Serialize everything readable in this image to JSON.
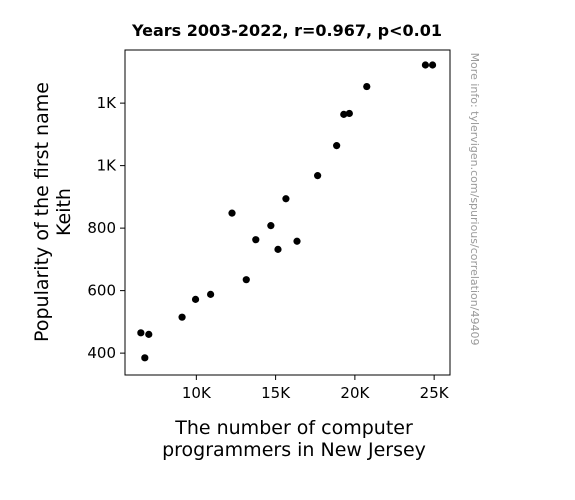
{
  "chart_data": {
    "type": "scatter",
    "title": "Years 2003-2022, r=0.967, p<0.01",
    "xlabel_lines": [
      "The number of computer",
      "programmers in New Jersey"
    ],
    "ylabel_lines": [
      "Popularity of the first name",
      "Keith"
    ],
    "xlim": [
      5500,
      26000
    ],
    "ylim": [
      330,
      1370
    ],
    "x_ticks": [
      {
        "value": 10000,
        "label": "10K"
      },
      {
        "value": 15000,
        "label": "15K"
      },
      {
        "value": 20000,
        "label": "20K"
      },
      {
        "value": 25000,
        "label": "25K"
      }
    ],
    "y_ticks": [
      {
        "value": 400,
        "label": "400"
      },
      {
        "value": 600,
        "label": "600"
      },
      {
        "value": 800,
        "label": "800"
      },
      {
        "value": 1000,
        "label": "1K"
      },
      {
        "value": 1200,
        "label": "1K"
      }
    ],
    "grid": false,
    "marker_color": "#000000",
    "points": [
      {
        "x": 6500,
        "y": 465
      },
      {
        "x": 6750,
        "y": 385
      },
      {
        "x": 7000,
        "y": 460
      },
      {
        "x": 9100,
        "y": 515
      },
      {
        "x": 9950,
        "y": 572
      },
      {
        "x": 10900,
        "y": 588
      },
      {
        "x": 12250,
        "y": 848
      },
      {
        "x": 13150,
        "y": 635
      },
      {
        "x": 13750,
        "y": 763
      },
      {
        "x": 14700,
        "y": 808
      },
      {
        "x": 15150,
        "y": 732
      },
      {
        "x": 15650,
        "y": 894
      },
      {
        "x": 16350,
        "y": 758
      },
      {
        "x": 17650,
        "y": 968
      },
      {
        "x": 18850,
        "y": 1064
      },
      {
        "x": 19300,
        "y": 1164
      },
      {
        "x": 19650,
        "y": 1167
      },
      {
        "x": 20750,
        "y": 1253
      },
      {
        "x": 24450,
        "y": 1322
      },
      {
        "x": 24900,
        "y": 1322
      }
    ]
  },
  "watermark": "More info: tylervigen.com/spurious/correlation/49409"
}
